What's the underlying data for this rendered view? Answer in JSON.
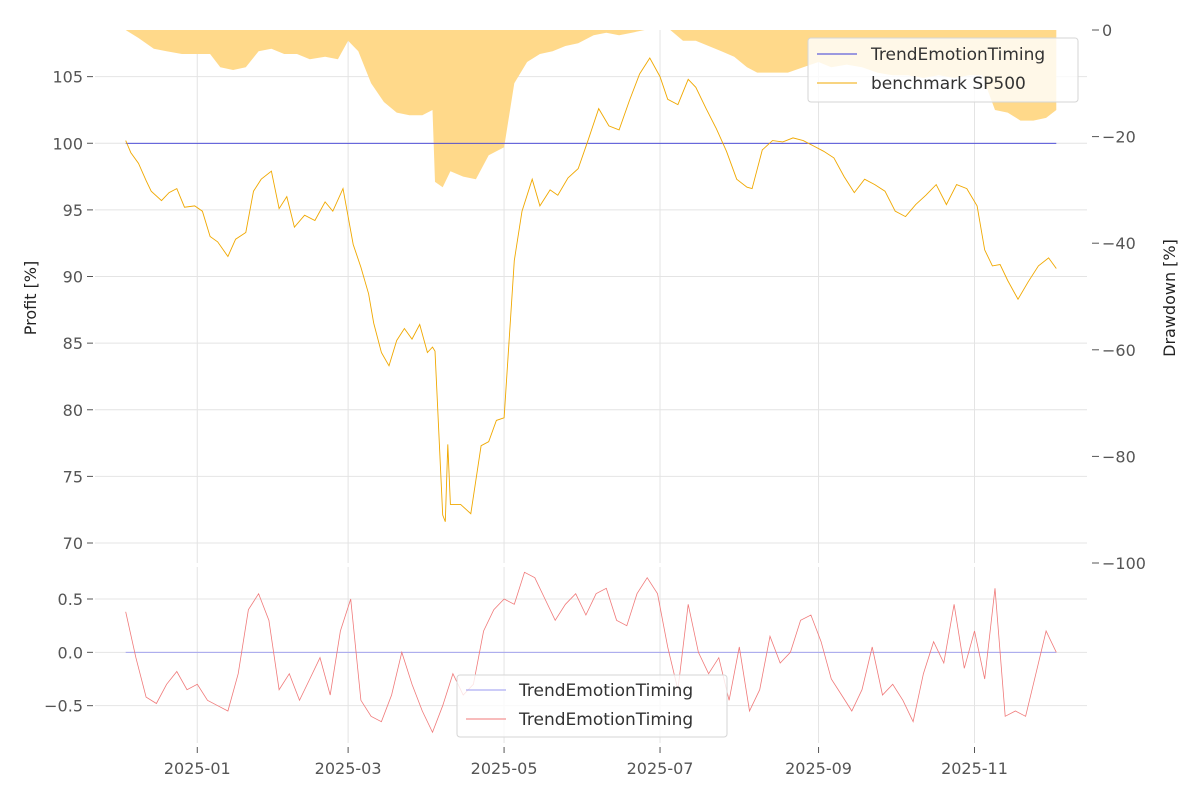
{
  "chart_data": [
    {
      "type": "line",
      "panel": "equity",
      "ylabel": "Profit [%]",
      "ylabel_right": "Drawdown [%]",
      "ylim": [
        68.5,
        108.5
      ],
      "yticks": [
        70,
        75,
        80,
        85,
        90,
        95,
        100,
        105
      ],
      "ylim_right": [
        -100,
        0
      ],
      "yticks_right": [
        0,
        -20,
        -40,
        -60,
        -80,
        -100
      ],
      "yticks_right_labels": [
        "0",
        "−20",
        "−40",
        "−60",
        "−80",
        "−100"
      ],
      "xlim": [
        "2024-11-22",
        "2025-12-15"
      ],
      "legend_position": "top-right",
      "grid": true,
      "colors": {
        "strategy": "#3a3ad6",
        "benchmark": "#f0a800",
        "drawdown": "#ffd98a"
      },
      "series": [
        {
          "name": "TrendEmotionTiming",
          "color": "#3a3ad6",
          "x": [
            "2024-12-04",
            "2025-12-03"
          ],
          "y": [
            100,
            100
          ]
        },
        {
          "name": "benchmark SP500",
          "color": "#f0a800",
          "x": [
            "2024-12-04",
            "2024-12-06",
            "2024-12-09",
            "2024-12-12",
            "2024-12-14",
            "2024-12-18",
            "2024-12-21",
            "2024-12-24",
            "2024-12-27",
            "2024-12-31",
            "2025-01-03",
            "2025-01-06",
            "2025-01-09",
            "2025-01-13",
            "2025-01-16",
            "2025-01-20",
            "2025-01-23",
            "2025-01-26",
            "2025-01-30",
            "2025-02-02",
            "2025-02-05",
            "2025-02-08",
            "2025-02-12",
            "2025-02-16",
            "2025-02-20",
            "2025-02-23",
            "2025-02-27",
            "2025-03-03",
            "2025-03-06",
            "2025-03-09",
            "2025-03-11",
            "2025-03-14",
            "2025-03-17",
            "2025-03-20",
            "2025-03-23",
            "2025-03-26",
            "2025-03-29",
            "2025-04-01",
            "2025-04-03",
            "2025-04-04",
            "2025-04-07",
            "2025-04-08",
            "2025-04-09",
            "2025-04-10",
            "2025-04-14",
            "2025-04-18",
            "2025-04-22",
            "2025-04-25",
            "2025-04-28",
            "2025-05-01",
            "2025-05-05",
            "2025-05-08",
            "2025-05-12",
            "2025-05-15",
            "2025-05-19",
            "2025-05-22",
            "2025-05-26",
            "2025-05-30",
            "2025-06-03",
            "2025-06-07",
            "2025-06-11",
            "2025-06-15",
            "2025-06-19",
            "2025-06-23",
            "2025-06-27",
            "2025-07-01",
            "2025-07-04",
            "2025-07-08",
            "2025-07-12",
            "2025-07-15",
            "2025-07-19",
            "2025-07-23",
            "2025-07-27",
            "2025-07-31",
            "2025-08-04",
            "2025-08-06",
            "2025-08-10",
            "2025-08-14",
            "2025-08-18",
            "2025-08-22",
            "2025-08-26",
            "2025-08-30",
            "2025-09-03",
            "2025-09-07",
            "2025-09-11",
            "2025-09-15",
            "2025-09-19",
            "2025-09-23",
            "2025-09-27",
            "2025-10-01",
            "2025-10-05",
            "2025-10-09",
            "2025-10-13",
            "2025-10-17",
            "2025-10-21",
            "2025-10-25",
            "2025-10-29",
            "2025-11-02",
            "2025-11-05",
            "2025-11-08",
            "2025-11-11",
            "2025-11-14",
            "2025-11-18",
            "2025-11-22",
            "2025-11-26",
            "2025-11-30",
            "2025-12-03"
          ],
          "y": [
            100.2,
            99.3,
            98.5,
            97.2,
            96.4,
            95.7,
            96.3,
            96.6,
            95.2,
            95.3,
            94.9,
            93.0,
            92.6,
            91.5,
            92.8,
            93.3,
            96.4,
            97.3,
            97.9,
            95.1,
            96.0,
            93.7,
            94.6,
            94.2,
            95.6,
            94.9,
            96.6,
            92.4,
            90.7,
            88.7,
            86.5,
            84.3,
            83.3,
            85.2,
            86.1,
            85.3,
            86.4,
            84.3,
            84.7,
            84.4,
            72.1,
            71.6,
            77.4,
            72.9,
            72.9,
            72.2,
            77.3,
            77.6,
            79.2,
            79.4,
            91.2,
            94.9,
            97.3,
            95.3,
            96.5,
            96.1,
            97.4,
            98.1,
            100.3,
            102.6,
            101.3,
            101.0,
            103.2,
            105.2,
            106.4,
            105.0,
            103.3,
            102.9,
            104.8,
            104.2,
            102.6,
            101.1,
            99.4,
            97.3,
            96.7,
            96.6,
            99.5,
            100.2,
            100.1,
            100.4,
            100.2,
            99.8,
            99.4,
            98.9,
            97.5,
            96.3,
            97.3,
            96.9,
            96.4,
            94.9,
            94.5,
            95.4,
            96.1,
            96.9,
            95.4,
            96.9,
            96.6,
            95.3,
            92.0,
            90.8,
            90.9,
            89.7,
            88.3,
            89.6,
            90.8,
            91.4,
            90.6
          ]
        }
      ],
      "drawdown": {
        "name": "Drawdown [%]",
        "x": [
          "2024-12-04",
          "2024-12-09",
          "2024-12-15",
          "2024-12-20",
          "2024-12-26",
          "2025-01-01",
          "2025-01-06",
          "2025-01-10",
          "2025-01-15",
          "2025-01-20",
          "2025-01-25",
          "2025-01-30",
          "2025-02-04",
          "2025-02-09",
          "2025-02-14",
          "2025-02-20",
          "2025-02-25",
          "2025-03-01",
          "2025-03-05",
          "2025-03-10",
          "2025-03-15",
          "2025-03-20",
          "2025-03-25",
          "2025-03-30",
          "2025-04-03",
          "2025-04-04",
          "2025-04-07",
          "2025-04-10",
          "2025-04-15",
          "2025-04-20",
          "2025-04-25",
          "2025-05-01",
          "2025-05-05",
          "2025-05-10",
          "2025-05-15",
          "2025-05-20",
          "2025-05-25",
          "2025-05-30",
          "2025-06-05",
          "2025-06-10",
          "2025-06-15",
          "2025-06-20",
          "2025-06-25",
          "2025-06-30",
          "2025-07-05",
          "2025-07-10",
          "2025-07-15",
          "2025-07-20",
          "2025-07-25",
          "2025-07-30",
          "2025-08-04",
          "2025-08-08",
          "2025-08-14",
          "2025-08-20",
          "2025-08-26",
          "2025-09-01",
          "2025-09-06",
          "2025-09-12",
          "2025-09-18",
          "2025-09-24",
          "2025-09-30",
          "2025-10-06",
          "2025-10-12",
          "2025-10-18",
          "2025-10-24",
          "2025-10-30",
          "2025-11-04",
          "2025-11-09",
          "2025-11-14",
          "2025-11-19",
          "2025-11-24",
          "2025-11-29",
          "2025-12-03"
        ],
        "y": [
          0,
          -1.5,
          -3.5,
          -4.0,
          -4.5,
          -4.5,
          -4.5,
          -7.0,
          -7.5,
          -7.0,
          -4.0,
          -3.5,
          -4.5,
          -4.5,
          -5.5,
          -5.0,
          -5.5,
          -2.0,
          -4.0,
          -10.0,
          -13.5,
          -15.5,
          -16.0,
          -16.0,
          -15.0,
          -28.5,
          -29.5,
          -26.5,
          -27.5,
          -28.0,
          -23.5,
          -22.0,
          -10.0,
          -6.0,
          -4.5,
          -4.0,
          -3.0,
          -2.5,
          -1.0,
          -0.5,
          -1.0,
          -0.5,
          0,
          0,
          0,
          -2.0,
          -2.0,
          -3.0,
          -4.0,
          -5.0,
          -7.0,
          -8.0,
          -8.0,
          -8.0,
          -7.0,
          -6.0,
          -7.0,
          -6.5,
          -7.0,
          -8.0,
          -8.5,
          -8.5,
          -9.0,
          -8.5,
          -9.0,
          -8.5,
          -8.5,
          -15.0,
          -15.5,
          -17.0,
          -17.0,
          -16.5,
          -15.0
        ]
      },
      "legend": [
        "TrendEmotionTiming",
        "benchmark SP500"
      ]
    },
    {
      "type": "line",
      "panel": "daily",
      "ylim": [
        -0.85,
        0.8
      ],
      "yticks": [
        -0.5,
        0.0,
        0.5
      ],
      "yticks_labels": [
        "−0.5",
        "0.0",
        "0.5"
      ],
      "xlim": [
        "2024-11-22",
        "2025-12-15"
      ],
      "xticks": [
        "2025-01-01",
        "2025-03-01",
        "2025-05-01",
        "2025-07-01",
        "2025-09-01",
        "2025-11-01"
      ],
      "xtick_labels": [
        "2025-01",
        "2025-03",
        "2025-05",
        "2025-07",
        "2025-09",
        "2025-11"
      ],
      "legend_position": "bottom-center",
      "grid": true,
      "colors": {
        "strategy": "#9a9af0",
        "benchmark": "#f07a7a"
      },
      "series": [
        {
          "name": "TrendEmotionTiming",
          "color": "#9a9af0",
          "x": [
            "2024-12-04",
            "2025-12-03"
          ],
          "y": [
            0,
            0
          ]
        },
        {
          "name": "TrendEmotionTiming",
          "color": "#f07a7a",
          "x": [
            "2024-12-04",
            "2024-12-08",
            "2024-12-12",
            "2024-12-16",
            "2024-12-20",
            "2024-12-24",
            "2024-12-28",
            "2025-01-01",
            "2025-01-05",
            "2025-01-09",
            "2025-01-13",
            "2025-01-17",
            "2025-01-21",
            "2025-01-25",
            "2025-01-29",
            "2025-02-02",
            "2025-02-06",
            "2025-02-10",
            "2025-02-14",
            "2025-02-18",
            "2025-02-22",
            "2025-02-26",
            "2025-03-02",
            "2025-03-06",
            "2025-03-10",
            "2025-03-14",
            "2025-03-18",
            "2025-03-22",
            "2025-03-26",
            "2025-03-30",
            "2025-04-03",
            "2025-04-07",
            "2025-04-11",
            "2025-04-15",
            "2025-04-19",
            "2025-04-23",
            "2025-04-27",
            "2025-05-01",
            "2025-05-05",
            "2025-05-09",
            "2025-05-13",
            "2025-05-17",
            "2025-05-21",
            "2025-05-25",
            "2025-05-29",
            "2025-06-02",
            "2025-06-06",
            "2025-06-10",
            "2025-06-14",
            "2025-06-18",
            "2025-06-22",
            "2025-06-26",
            "2025-06-30",
            "2025-07-04",
            "2025-07-08",
            "2025-07-12",
            "2025-07-16",
            "2025-07-20",
            "2025-07-24",
            "2025-07-28",
            "2025-08-01",
            "2025-08-05",
            "2025-08-09",
            "2025-08-13",
            "2025-08-17",
            "2025-08-21",
            "2025-08-25",
            "2025-08-29",
            "2025-09-02",
            "2025-09-06",
            "2025-09-10",
            "2025-09-14",
            "2025-09-18",
            "2025-09-22",
            "2025-09-26",
            "2025-09-30",
            "2025-10-04",
            "2025-10-08",
            "2025-10-12",
            "2025-10-16",
            "2025-10-20",
            "2025-10-24",
            "2025-10-28",
            "2025-11-01",
            "2025-11-05",
            "2025-11-09",
            "2025-11-13",
            "2025-11-17",
            "2025-11-21",
            "2025-11-25",
            "2025-11-29",
            "2025-12-03"
          ],
          "y": [
            0.38,
            -0.05,
            -0.42,
            -0.48,
            -0.3,
            -0.18,
            -0.35,
            -0.3,
            -0.45,
            -0.5,
            -0.55,
            -0.2,
            0.4,
            0.55,
            0.3,
            -0.35,
            -0.2,
            -0.45,
            -0.25,
            -0.05,
            -0.4,
            0.2,
            0.5,
            -0.45,
            -0.6,
            -0.65,
            -0.4,
            0.0,
            -0.3,
            -0.55,
            -0.75,
            -0.5,
            -0.2,
            -0.4,
            -0.3,
            0.2,
            0.4,
            0.5,
            0.45,
            0.75,
            0.7,
            0.5,
            0.3,
            0.45,
            0.55,
            0.35,
            0.55,
            0.6,
            0.3,
            0.25,
            0.55,
            0.7,
            0.55,
            0.05,
            -0.35,
            0.45,
            0.0,
            -0.2,
            -0.05,
            -0.45,
            0.05,
            -0.55,
            -0.35,
            0.15,
            -0.1,
            0.0,
            0.3,
            0.35,
            0.1,
            -0.25,
            -0.4,
            -0.55,
            -0.35,
            0.05,
            -0.4,
            -0.3,
            -0.45,
            -0.65,
            -0.2,
            0.1,
            -0.1,
            0.45,
            -0.15,
            0.2,
            -0.25,
            0.6,
            -0.6,
            -0.55,
            -0.6,
            -0.2,
            0.2,
            0.0
          ]
        }
      ],
      "legend": [
        "TrendEmotionTiming",
        "TrendEmotionTiming"
      ]
    }
  ]
}
